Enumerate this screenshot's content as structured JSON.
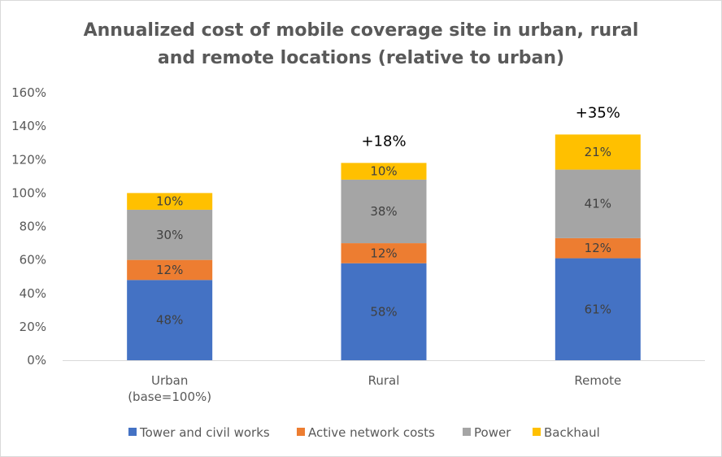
{
  "chart_data": {
    "type": "bar",
    "stacked": true,
    "title_lines": [
      "Annualized cost of mobile coverage site in urban, rural",
      "and remote locations (relative to urban)"
    ],
    "categories": [
      [
        "Urban",
        "(base=100%)"
      ],
      [
        "Rural"
      ],
      [
        "Remote"
      ]
    ],
    "series": [
      {
        "name": "Tower and civil works",
        "color": "#4472c4",
        "values": [
          48,
          58,
          61
        ],
        "labels": [
          "48%",
          "58%",
          "61%"
        ]
      },
      {
        "name": "Active network costs",
        "color": "#ed7d31",
        "values": [
          12,
          12,
          12
        ],
        "labels": [
          "12%",
          "12%",
          "12%"
        ]
      },
      {
        "name": "Power",
        "color": "#a5a5a5",
        "values": [
          30,
          38,
          41
        ],
        "labels": [
          "30%",
          "38%",
          "41%"
        ]
      },
      {
        "name": "Backhaul",
        "color": "#ffc000",
        "values": [
          10,
          10,
          21
        ],
        "labels": [
          "10%",
          "10%",
          "21%"
        ]
      }
    ],
    "annotations": [
      "",
      "+18%",
      "+35%"
    ],
    "ylim": [
      0,
      160
    ],
    "yticks": [
      "0%",
      "20%",
      "40%",
      "60%",
      "80%",
      "100%",
      "120%",
      "140%",
      "160%"
    ],
    "grid": false,
    "legend_position": "bottom"
  }
}
